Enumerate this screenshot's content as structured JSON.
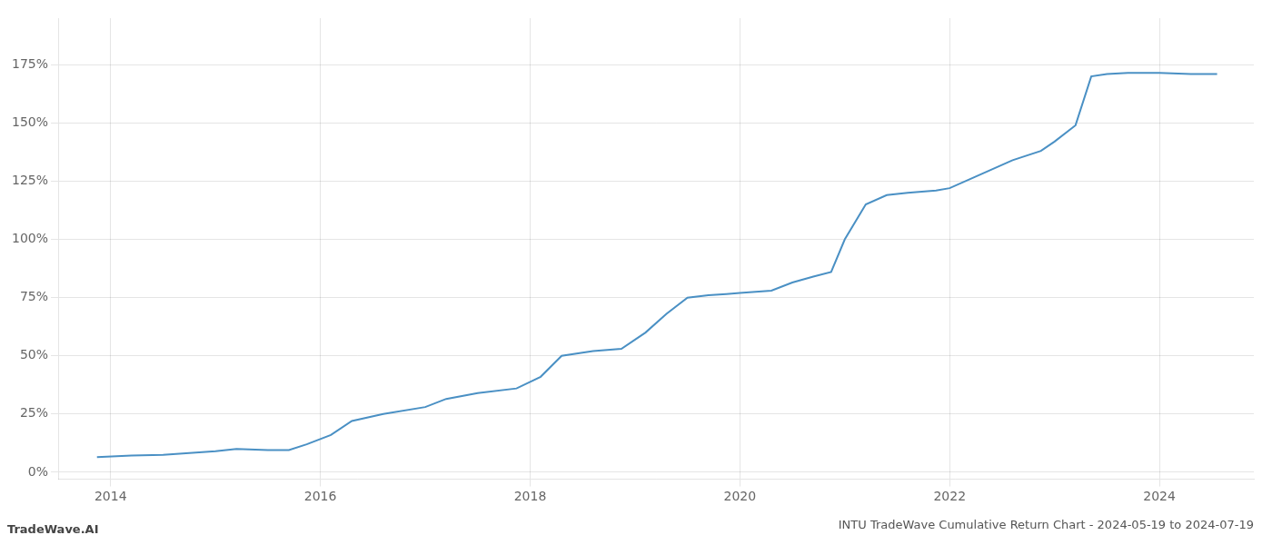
{
  "chart_data": {
    "type": "line",
    "title": "INTU TradeWave Cumulative Return Chart - 2024-05-19 to 2024-07-19",
    "annotations": [
      "TradeWave.AI"
    ],
    "color": "#4a90c4",
    "grid": true,
    "x": [
      2013.87,
      2014.2,
      2014.5,
      2015.0,
      2015.2,
      2015.5,
      2015.7,
      2015.87,
      2016.1,
      2016.3,
      2016.6,
      2017.0,
      2017.2,
      2017.5,
      2017.87,
      2018.1,
      2018.3,
      2018.6,
      2018.87,
      2019.1,
      2019.3,
      2019.5,
      2019.7,
      2019.87,
      2020.0,
      2020.15,
      2020.3,
      2020.5,
      2020.7,
      2020.87,
      2021.0,
      2021.2,
      2021.4,
      2021.6,
      2021.87,
      2022.0,
      2022.2,
      2022.4,
      2022.6,
      2022.87,
      2023.0,
      2023.2,
      2023.35,
      2023.5,
      2023.7,
      2023.87,
      2024.0,
      2024.3,
      2024.55
    ],
    "values": [
      0.065,
      0.072,
      0.075,
      0.09,
      0.1,
      0.095,
      0.095,
      0.12,
      0.16,
      0.22,
      0.25,
      0.28,
      0.315,
      0.34,
      0.36,
      0.41,
      0.5,
      0.52,
      0.53,
      0.6,
      0.68,
      0.75,
      0.76,
      0.765,
      0.77,
      0.775,
      0.78,
      0.815,
      0.84,
      0.86,
      1.0,
      1.15,
      1.19,
      1.2,
      1.21,
      1.22,
      1.26,
      1.3,
      1.34,
      1.38,
      1.42,
      1.49,
      1.7,
      1.71,
      1.715,
      1.715,
      1.715,
      1.71,
      1.71
    ],
    "xlim": [
      2013.5,
      2024.9
    ],
    "xticks": [
      2014,
      2016,
      2018,
      2020,
      2022,
      2024
    ],
    "ylim": [
      -0.03,
      1.95
    ],
    "yticks": [
      {
        "value": 0.0,
        "label": "0%"
      },
      {
        "value": 0.25,
        "label": "25%"
      },
      {
        "value": 0.5,
        "label": "50%"
      },
      {
        "value": 0.75,
        "label": "75%"
      },
      {
        "value": 1.0,
        "label": "100%"
      },
      {
        "value": 1.25,
        "label": "125%"
      },
      {
        "value": 1.5,
        "label": "150%"
      },
      {
        "value": 1.75,
        "label": "175%"
      }
    ]
  }
}
